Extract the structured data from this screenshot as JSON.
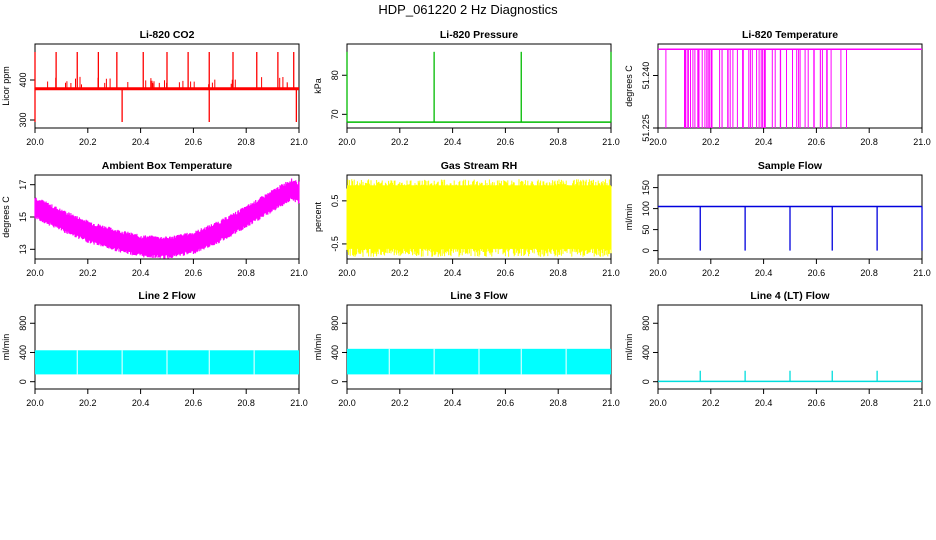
{
  "title": "HDP_061220  2 Hz Diagnostics",
  "chart_data": [
    {
      "type": "line",
      "title": "Li-820 CO2",
      "ylabel": "Licor ppm",
      "color": "#ff0000",
      "xlim": [
        20.0,
        21.0
      ],
      "ylim": [
        280,
        490
      ],
      "xticks": [
        20.0,
        20.2,
        20.4,
        20.6,
        20.8,
        21.0
      ],
      "xtick_labels": [
        "20.0",
        "20.2",
        "20.4",
        "20.6",
        "20.8",
        "21.0"
      ],
      "yticks": [
        300,
        400
      ],
      "ytick_labels": [
        "300",
        "400"
      ],
      "series": [
        {
          "x": [
            20.0,
            21.0
          ],
          "y": [
            378,
            378
          ]
        }
      ],
      "spikes": {
        "up_x": [
          20.0,
          20.08,
          20.16,
          20.24,
          20.31,
          20.41,
          20.5,
          20.58,
          20.66,
          20.75,
          20.84,
          20.92,
          20.98
        ],
        "up_to": 470,
        "down_x": [
          20.0,
          20.33,
          20.66,
          20.99
        ],
        "down_to": 295
      }
    },
    {
      "type": "line",
      "title": "Li-820 Pressure",
      "ylabel": "kPa",
      "color": "#00bb00",
      "xlim": [
        20.0,
        21.0
      ],
      "ylim": [
        66.5,
        88
      ],
      "xticks": [
        20.0,
        20.2,
        20.4,
        20.6,
        20.8,
        21.0
      ],
      "xtick_labels": [
        "20.0",
        "20.2",
        "20.4",
        "20.6",
        "20.8",
        "21.0"
      ],
      "yticks": [
        70,
        80
      ],
      "ytick_labels": [
        "70",
        "80"
      ],
      "series": [
        {
          "x": [
            20.0,
            21.0
          ],
          "y": [
            68,
            68
          ]
        }
      ],
      "spikes": {
        "up_x": [
          20.0,
          20.33,
          20.66,
          21.0
        ],
        "up_to": 86
      }
    },
    {
      "type": "line",
      "title": "Li-820 Temperature",
      "ylabel": "degrees C",
      "color": "#ff00ff",
      "xlim": [
        20.0,
        21.0
      ],
      "ylim": [
        51.225,
        51.249
      ],
      "xticks": [
        20.0,
        20.2,
        20.4,
        20.6,
        20.8,
        21.0
      ],
      "xtick_labels": [
        "20.0",
        "20.2",
        "20.4",
        "20.6",
        "20.8",
        "21.0"
      ],
      "yticks": [
        51.225,
        51.24
      ],
      "ytick_labels": [
        "51.225",
        "51.240"
      ],
      "series": [
        {
          "x": [
            20.0,
            21.0
          ],
          "y": [
            51.2475,
            51.2475
          ]
        }
      ],
      "spikes": {
        "range": [
          20.1,
          20.72
        ],
        "down_to": 51.225
      }
    },
    {
      "type": "area",
      "title": "Ambient Box Temperature",
      "ylabel": "degrees C",
      "color": "#ff00ff",
      "xlim": [
        20.0,
        21.0
      ],
      "ylim": [
        12.4,
        17.6
      ],
      "xticks": [
        20.0,
        20.2,
        20.4,
        20.6,
        20.8,
        21.0
      ],
      "xtick_labels": [
        "20.0",
        "20.2",
        "20.4",
        "20.6",
        "20.8",
        "21.0"
      ],
      "yticks": [
        13,
        15,
        17
      ],
      "ytick_labels": [
        "13",
        "15",
        "17"
      ],
      "series": [
        {
          "name": "",
          "x": [
            20.0,
            20.1,
            20.2,
            20.3,
            20.4,
            20.5,
            20.6,
            20.7,
            20.8,
            20.9,
            20.97,
            21.0
          ],
          "y": [
            15.6,
            14.8,
            14.1,
            13.6,
            13.2,
            13.1,
            13.4,
            14.1,
            15.0,
            16.0,
            16.7,
            16.5
          ]
        }
      ],
      "band_halfwidth": 0.45
    },
    {
      "type": "area",
      "title": "Gas Stream RH",
      "ylabel": "percent",
      "color": "#ffff00",
      "xlim": [
        20.0,
        21.0
      ],
      "ylim": [
        -0.85,
        1.1
      ],
      "xticks": [
        20.0,
        20.2,
        20.4,
        20.6,
        20.8,
        21.0
      ],
      "xtick_labels": [
        "20.0",
        "20.2",
        "20.4",
        "20.6",
        "20.8",
        "21.0"
      ],
      "yticks": [
        -0.5,
        0.5
      ],
      "ytick_labels": [
        "-0.5",
        "0.5"
      ],
      "series": [
        {
          "x": [
            20.0,
            21.0
          ],
          "y": [
            0.15,
            0.15
          ]
        }
      ],
      "band": [
        -0.8,
        1.0
      ]
    },
    {
      "type": "line",
      "title": "Sample Flow",
      "ylabel": "ml/min",
      "color": "#0000dd",
      "xlim": [
        20.0,
        21.0
      ],
      "ylim": [
        -20,
        180
      ],
      "xticks": [
        20.0,
        20.2,
        20.4,
        20.6,
        20.8,
        21.0
      ],
      "xtick_labels": [
        "20.0",
        "20.2",
        "20.4",
        "20.6",
        "20.8",
        "21.0"
      ],
      "yticks": [
        0,
        50,
        100,
        150
      ],
      "ytick_labels": [
        "0",
        "50",
        "100",
        "150"
      ],
      "series": [
        {
          "x": [
            20.0,
            21.0
          ],
          "y": [
            105,
            105
          ]
        }
      ],
      "spikes": {
        "down_x": [
          20.16,
          20.33,
          20.5,
          20.66,
          20.83,
          21.0
        ],
        "down_to": 0
      }
    },
    {
      "type": "area",
      "title": "Line 2 Flow",
      "ylabel": "ml/min",
      "color": "#00ffff",
      "xlim": [
        20.0,
        21.0
      ],
      "ylim": [
        -100,
        1050
      ],
      "xticks": [
        20.0,
        20.2,
        20.4,
        20.6,
        20.8,
        21.0
      ],
      "xtick_labels": [
        "20.0",
        "20.2",
        "20.4",
        "20.6",
        "20.8",
        "21.0"
      ],
      "yticks": [
        0,
        400,
        800
      ],
      "ytick_labels": [
        "0",
        "400",
        "800"
      ],
      "series": [
        {
          "x": [
            20.0,
            21.0
          ],
          "y": [
            270,
            270
          ]
        }
      ],
      "band": [
        100,
        430
      ],
      "gaps_x": [
        20.16,
        20.33,
        20.5,
        20.66,
        20.83
      ]
    },
    {
      "type": "area",
      "title": "Line 3 Flow",
      "ylabel": "ml/min",
      "color": "#00ffff",
      "xlim": [
        20.0,
        21.0
      ],
      "ylim": [
        -100,
        1050
      ],
      "xticks": [
        20.0,
        20.2,
        20.4,
        20.6,
        20.8,
        21.0
      ],
      "xtick_labels": [
        "20.0",
        "20.2",
        "20.4",
        "20.6",
        "20.8",
        "21.0"
      ],
      "yticks": [
        0,
        400,
        800
      ],
      "ytick_labels": [
        "0",
        "400",
        "800"
      ],
      "series": [
        {
          "x": [
            20.0,
            21.0
          ],
          "y": [
            280,
            280
          ]
        }
      ],
      "band": [
        100,
        450
      ],
      "gaps_x": [
        20.16,
        20.33,
        20.5,
        20.66,
        20.83
      ]
    },
    {
      "type": "line",
      "title": "Line 4 (LT) Flow",
      "ylabel": "ml/min",
      "color": "#00dddd",
      "xlim": [
        20.0,
        21.0
      ],
      "ylim": [
        -100,
        1050
      ],
      "xticks": [
        20.0,
        20.2,
        20.4,
        20.6,
        20.8,
        21.0
      ],
      "xtick_labels": [
        "20.0",
        "20.2",
        "20.4",
        "20.6",
        "20.8",
        "21.0"
      ],
      "yticks": [
        0,
        400,
        800
      ],
      "ytick_labels": [
        "0",
        "400",
        "800"
      ],
      "series": [
        {
          "x": [
            20.0,
            21.0
          ],
          "y": [
            5,
            5
          ]
        }
      ],
      "spikes": {
        "up_x": [
          20.16,
          20.33,
          20.5,
          20.66,
          20.83
        ],
        "up_to": 150
      }
    }
  ]
}
